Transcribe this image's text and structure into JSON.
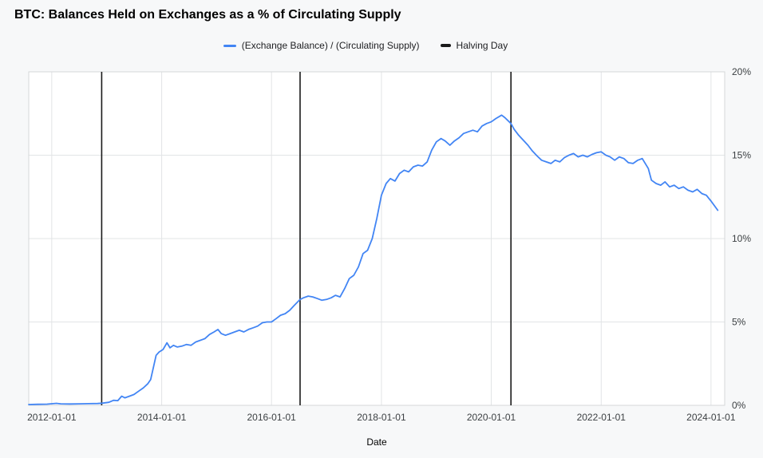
{
  "title": "BTC: Balances Held on Exchanges as a % of Circulating Supply",
  "legend": {
    "series_label": "(Exchange Balance) / (Circulating Supply)",
    "halving_label": "Halving Day"
  },
  "colors": {
    "series": "#4285f4",
    "halving": "#1a1a1a",
    "grid": "#e2e4e6",
    "border": "#d5d7d9",
    "page_bg": "#f7f8f9",
    "plot_bg": "#ffffff",
    "axis_text": "#3c4043",
    "axis_title_text": "#000000"
  },
  "chart_data": {
    "type": "line",
    "title": "BTC: Balances Held on Exchanges as a % of Circulating Supply",
    "xlabel": "Date",
    "ylabel": "",
    "grid": true,
    "legend_position": "top",
    "x_range": [
      "2011-08-01",
      "2024-04-01"
    ],
    "ylim": [
      0,
      20
    ],
    "y_ticks": [
      {
        "value": 0,
        "label": "0%"
      },
      {
        "value": 5,
        "label": "5%"
      },
      {
        "value": 10,
        "label": "10%"
      },
      {
        "value": 15,
        "label": "15%"
      },
      {
        "value": 20,
        "label": "20%"
      }
    ],
    "x_ticks": [
      {
        "date": "2012-01-01",
        "label": "2012-01-01"
      },
      {
        "date": "2014-01-01",
        "label": "2014-01-01"
      },
      {
        "date": "2016-01-01",
        "label": "2016-01-01"
      },
      {
        "date": "2018-01-01",
        "label": "2018-01-01"
      },
      {
        "date": "2020-01-01",
        "label": "2020-01-01"
      },
      {
        "date": "2022-01-01",
        "label": "2022-01-01"
      },
      {
        "date": "2024-01-01",
        "label": "2024-01-01"
      }
    ],
    "halving_days": [
      "2012-11-28",
      "2016-07-09",
      "2020-05-11"
    ],
    "series": [
      {
        "name": "(Exchange Balance) / (Circulating Supply)",
        "color": "#4285f4",
        "points": [
          [
            "2011-08-01",
            0.05
          ],
          [
            "2011-10-01",
            0.06
          ],
          [
            "2011-12-01",
            0.07
          ],
          [
            "2012-02-01",
            0.12
          ],
          [
            "2012-03-01",
            0.09
          ],
          [
            "2012-05-01",
            0.08
          ],
          [
            "2012-07-01",
            0.09
          ],
          [
            "2012-09-01",
            0.1
          ],
          [
            "2012-11-01",
            0.11
          ],
          [
            "2012-12-01",
            0.13
          ],
          [
            "2013-01-15",
            0.18
          ],
          [
            "2013-02-15",
            0.3
          ],
          [
            "2013-03-15",
            0.28
          ],
          [
            "2013-04-10",
            0.55
          ],
          [
            "2013-05-01",
            0.45
          ],
          [
            "2013-06-01",
            0.55
          ],
          [
            "2013-07-01",
            0.65
          ],
          [
            "2013-08-01",
            0.85
          ],
          [
            "2013-09-01",
            1.05
          ],
          [
            "2013-10-01",
            1.3
          ],
          [
            "2013-10-20",
            1.55
          ],
          [
            "2013-11-10",
            2.4
          ],
          [
            "2013-11-25",
            3.0
          ],
          [
            "2013-12-15",
            3.2
          ],
          [
            "2014-01-10",
            3.35
          ],
          [
            "2014-02-05",
            3.75
          ],
          [
            "2014-02-25",
            3.45
          ],
          [
            "2014-03-20",
            3.6
          ],
          [
            "2014-04-15",
            3.5
          ],
          [
            "2014-05-15",
            3.55
          ],
          [
            "2014-06-15",
            3.65
          ],
          [
            "2014-07-15",
            3.6
          ],
          [
            "2014-08-15",
            3.8
          ],
          [
            "2014-09-15",
            3.9
          ],
          [
            "2014-10-15",
            4.0
          ],
          [
            "2014-11-15",
            4.25
          ],
          [
            "2014-12-15",
            4.4
          ],
          [
            "2015-01-10",
            4.55
          ],
          [
            "2015-02-01",
            4.3
          ],
          [
            "2015-03-01",
            4.2
          ],
          [
            "2015-04-01",
            4.3
          ],
          [
            "2015-05-01",
            4.4
          ],
          [
            "2015-06-01",
            4.5
          ],
          [
            "2015-07-01",
            4.4
          ],
          [
            "2015-08-01",
            4.55
          ],
          [
            "2015-09-01",
            4.65
          ],
          [
            "2015-10-01",
            4.75
          ],
          [
            "2015-11-01",
            4.95
          ],
          [
            "2015-12-01",
            5.0
          ],
          [
            "2016-01-01",
            5.0
          ],
          [
            "2016-02-01",
            5.2
          ],
          [
            "2016-03-01",
            5.4
          ],
          [
            "2016-04-01",
            5.5
          ],
          [
            "2016-05-01",
            5.7
          ],
          [
            "2016-06-01",
            6.0
          ],
          [
            "2016-07-09",
            6.35
          ],
          [
            "2016-08-01",
            6.45
          ],
          [
            "2016-09-01",
            6.55
          ],
          [
            "2016-10-01",
            6.5
          ],
          [
            "2016-11-01",
            6.4
          ],
          [
            "2016-12-01",
            6.3
          ],
          [
            "2017-01-01",
            6.35
          ],
          [
            "2017-02-01",
            6.45
          ],
          [
            "2017-03-01",
            6.6
          ],
          [
            "2017-04-01",
            6.5
          ],
          [
            "2017-05-01",
            7.0
          ],
          [
            "2017-06-01",
            7.6
          ],
          [
            "2017-07-01",
            7.8
          ],
          [
            "2017-08-01",
            8.3
          ],
          [
            "2017-09-01",
            9.1
          ],
          [
            "2017-10-01",
            9.3
          ],
          [
            "2017-11-01",
            10.0
          ],
          [
            "2017-12-01",
            11.2
          ],
          [
            "2018-01-01",
            12.6
          ],
          [
            "2018-02-01",
            13.3
          ],
          [
            "2018-03-01",
            13.6
          ],
          [
            "2018-04-01",
            13.45
          ],
          [
            "2018-05-01",
            13.9
          ],
          [
            "2018-06-01",
            14.1
          ],
          [
            "2018-07-01",
            14.0
          ],
          [
            "2018-08-01",
            14.3
          ],
          [
            "2018-09-01",
            14.4
          ],
          [
            "2018-10-01",
            14.35
          ],
          [
            "2018-11-01",
            14.6
          ],
          [
            "2018-12-01",
            15.3
          ],
          [
            "2019-01-01",
            15.8
          ],
          [
            "2019-02-01",
            16.0
          ],
          [
            "2019-03-01",
            15.85
          ],
          [
            "2019-04-01",
            15.6
          ],
          [
            "2019-05-01",
            15.85
          ],
          [
            "2019-06-01",
            16.05
          ],
          [
            "2019-07-01",
            16.3
          ],
          [
            "2019-08-01",
            16.4
          ],
          [
            "2019-09-01",
            16.5
          ],
          [
            "2019-10-01",
            16.4
          ],
          [
            "2019-11-01",
            16.75
          ],
          [
            "2019-12-01",
            16.9
          ],
          [
            "2020-01-01",
            17.0
          ],
          [
            "2020-02-01",
            17.2
          ],
          [
            "2020-03-10",
            17.4
          ],
          [
            "2020-04-01",
            17.25
          ],
          [
            "2020-05-11",
            16.9
          ],
          [
            "2020-06-01",
            16.55
          ],
          [
            "2020-07-01",
            16.2
          ],
          [
            "2020-08-01",
            15.9
          ],
          [
            "2020-09-01",
            15.6
          ],
          [
            "2020-10-01",
            15.25
          ],
          [
            "2020-11-01",
            14.95
          ],
          [
            "2020-12-01",
            14.7
          ],
          [
            "2021-01-01",
            14.6
          ],
          [
            "2021-02-01",
            14.5
          ],
          [
            "2021-03-01",
            14.7
          ],
          [
            "2021-04-01",
            14.6
          ],
          [
            "2021-05-01",
            14.85
          ],
          [
            "2021-06-01",
            15.0
          ],
          [
            "2021-07-01",
            15.1
          ],
          [
            "2021-08-01",
            14.9
          ],
          [
            "2021-09-01",
            15.0
          ],
          [
            "2021-10-01",
            14.9
          ],
          [
            "2021-11-01",
            15.05
          ],
          [
            "2021-12-01",
            15.15
          ],
          [
            "2022-01-01",
            15.2
          ],
          [
            "2022-02-01",
            15.0
          ],
          [
            "2022-03-01",
            14.9
          ],
          [
            "2022-04-01",
            14.7
          ],
          [
            "2022-05-01",
            14.9
          ],
          [
            "2022-06-01",
            14.8
          ],
          [
            "2022-07-01",
            14.55
          ],
          [
            "2022-08-01",
            14.5
          ],
          [
            "2022-09-01",
            14.7
          ],
          [
            "2022-10-01",
            14.8
          ],
          [
            "2022-11-10",
            14.2
          ],
          [
            "2022-12-01",
            13.5
          ],
          [
            "2023-01-01",
            13.3
          ],
          [
            "2023-02-01",
            13.2
          ],
          [
            "2023-03-01",
            13.4
          ],
          [
            "2023-04-01",
            13.1
          ],
          [
            "2023-05-01",
            13.2
          ],
          [
            "2023-06-01",
            13.0
          ],
          [
            "2023-07-01",
            13.1
          ],
          [
            "2023-08-01",
            12.9
          ],
          [
            "2023-09-01",
            12.8
          ],
          [
            "2023-10-01",
            12.95
          ],
          [
            "2023-11-01",
            12.7
          ],
          [
            "2023-12-01",
            12.6
          ],
          [
            "2024-01-01",
            12.25
          ],
          [
            "2024-02-15",
            11.7
          ]
        ]
      }
    ]
  }
}
